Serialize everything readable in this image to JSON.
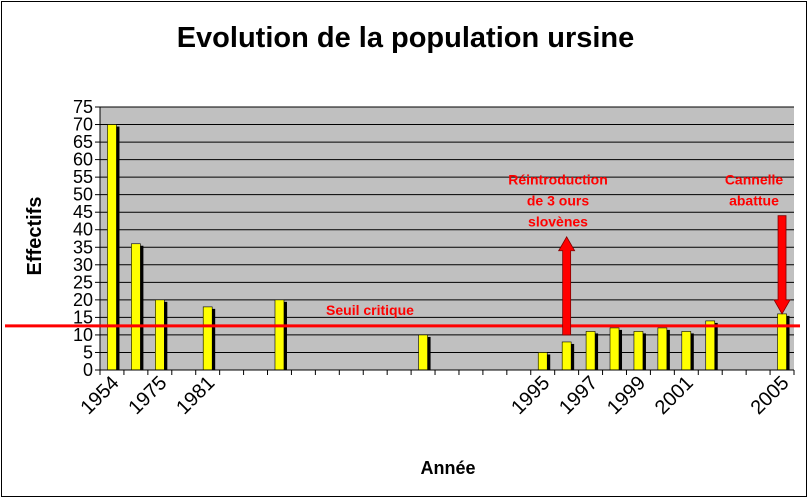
{
  "chart_data": {
    "type": "bar",
    "title": "Evolution de la population ursine",
    "xlabel": "Année",
    "ylabel": "Effectifs",
    "ylim": [
      0,
      75
    ],
    "yticks": [
      0,
      5,
      10,
      15,
      20,
      25,
      30,
      35,
      40,
      45,
      50,
      55,
      60,
      65,
      70,
      75
    ],
    "grid": true,
    "categories": [
      "1954",
      "",
      "1975",
      "",
      "1981",
      "",
      "",
      "",
      "",
      "",
      "",
      "",
      "",
      "",
      "",
      "",
      "",
      "",
      "1995",
      "",
      "1997",
      "",
      "1999",
      "",
      "2001",
      "",
      "",
      "",
      "2005"
    ],
    "values": [
      70,
      36,
      20,
      null,
      18,
      null,
      null,
      20,
      null,
      null,
      null,
      null,
      null,
      10,
      null,
      null,
      null,
      null,
      5,
      8,
      11,
      12,
      11,
      12,
      11,
      14,
      null,
      null,
      16
    ],
    "bar_color": "#ffff00",
    "shadow_color": "#000000",
    "plot_background": "#c0c0c0",
    "threshold": {
      "value": 14,
      "label": "Seuil critique",
      "color": "#ff0000"
    },
    "annotations": [
      {
        "lines": [
          "Réintroduction",
          "de 3 ours",
          "slovènes"
        ],
        "category_index": 19,
        "arrow": "up",
        "arrow_from": 10,
        "arrow_to": 38,
        "color": "#ff0000"
      },
      {
        "lines": [
          "Cannelle",
          "abattue"
        ],
        "category_index": 28,
        "arrow": "down",
        "arrow_from": 44,
        "arrow_to": 16,
        "color": "#ff0000"
      }
    ]
  }
}
